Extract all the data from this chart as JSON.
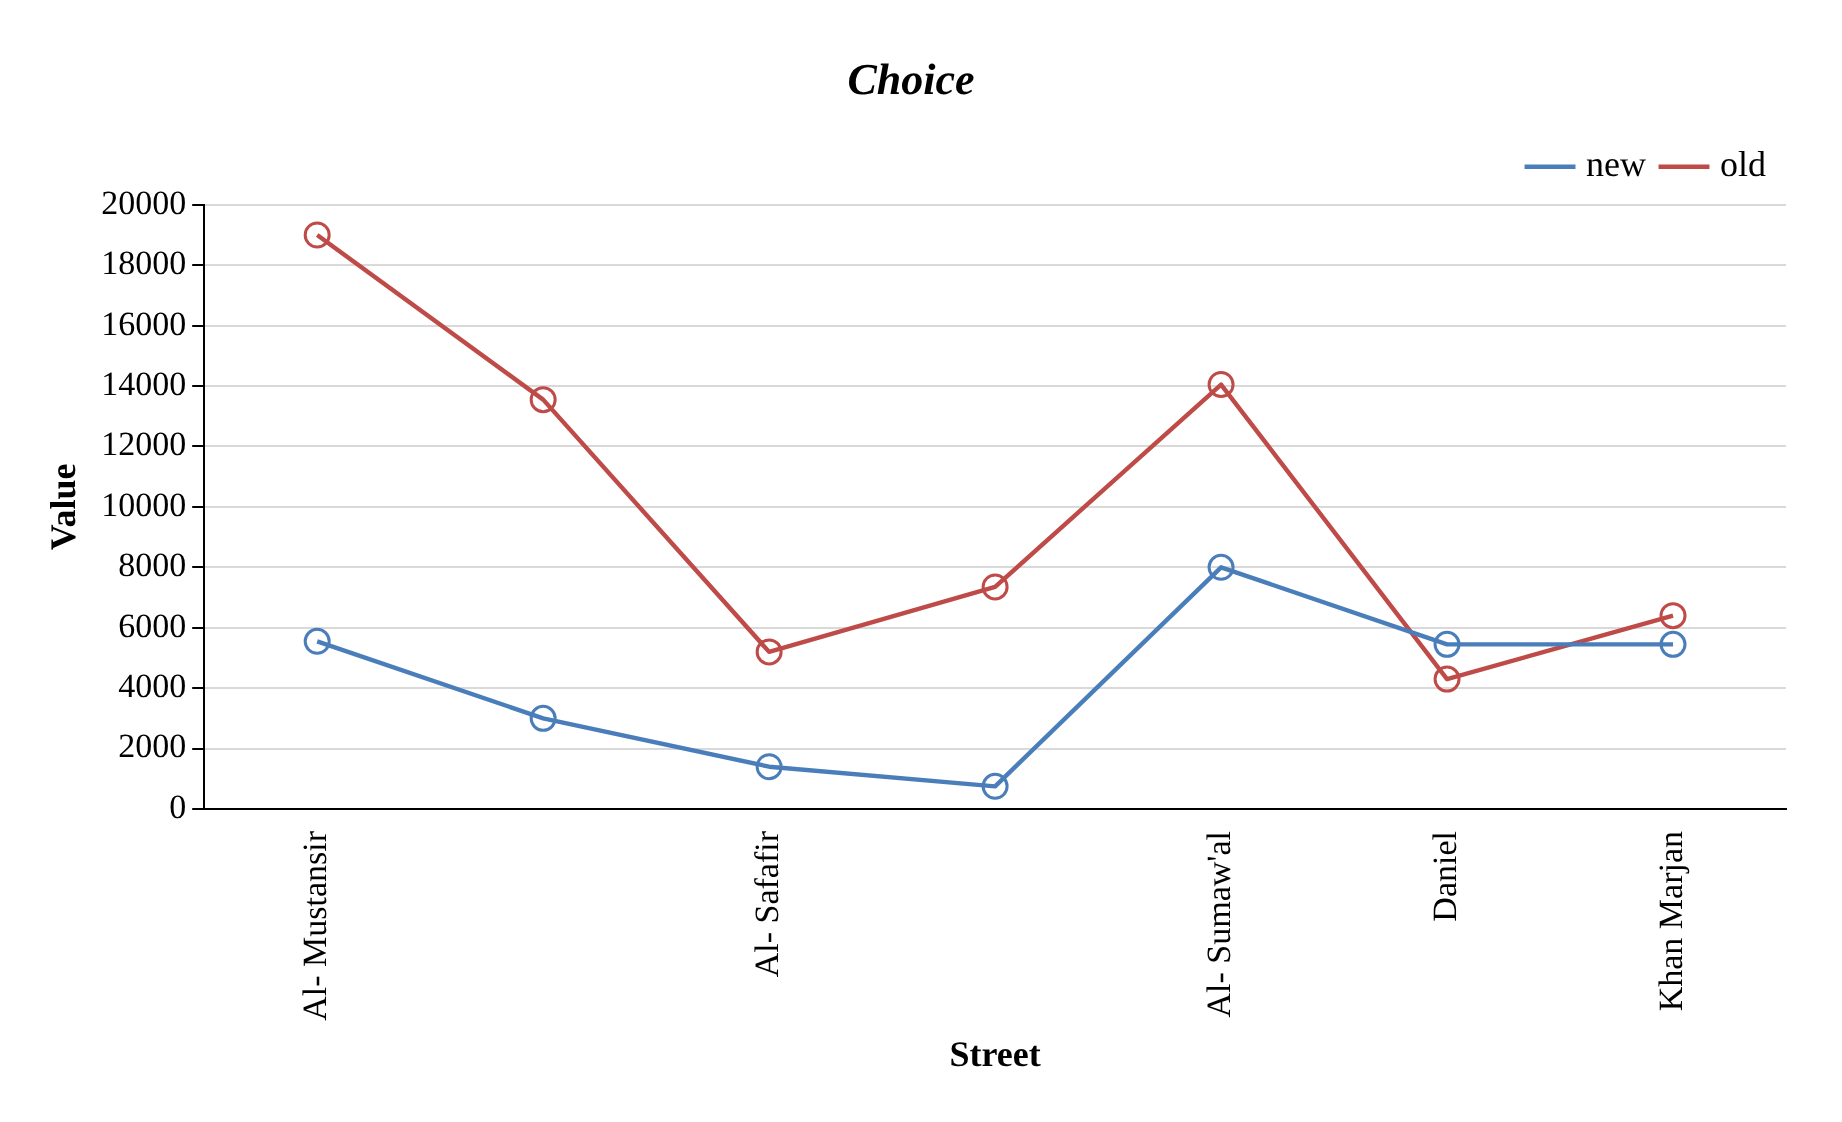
{
  "chart_data": {
    "type": "line",
    "title": "Choice",
    "xlabel": "Street",
    "ylabel": "Value",
    "categories": [
      "Al- Mustansir",
      null,
      "Al- Safafir",
      null,
      "Al- Sumaw'al",
      "Daniel",
      "Khan Marjan"
    ],
    "series": [
      {
        "name": "new",
        "color": "#4a7ebb",
        "values": [
          5550,
          3000,
          1400,
          750,
          8000,
          5450,
          5450
        ]
      },
      {
        "name": "old",
        "color": "#be4b48",
        "values": [
          19000,
          13550,
          5200,
          7350,
          14050,
          4300,
          6400
        ]
      }
    ],
    "ylim": [
      0,
      20000
    ],
    "yticks": [
      0,
      2000,
      4000,
      6000,
      8000,
      10000,
      12000,
      14000,
      16000,
      18000,
      20000
    ],
    "grid": "y",
    "legend": "top right",
    "marker": "circle",
    "line_style": "solid"
  }
}
